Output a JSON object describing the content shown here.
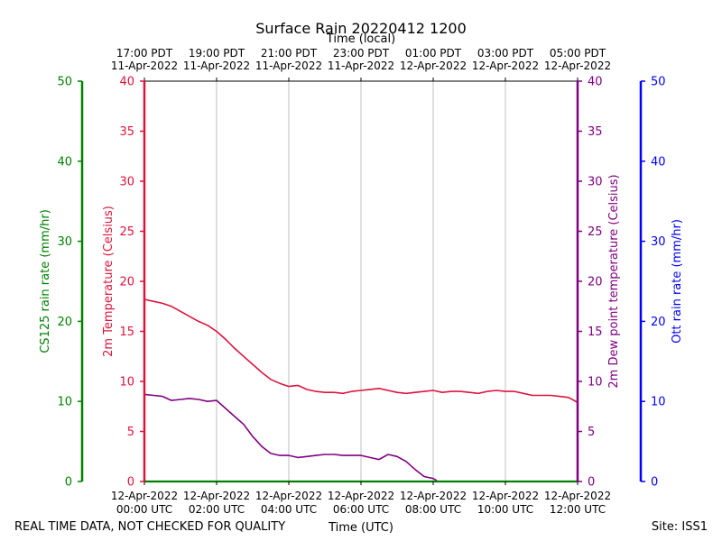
{
  "chart_data": {
    "type": "line",
    "title": "Surface Rain 20220412 1200",
    "top_axis_label": "Time (local)",
    "xlabel": "Time (UTC)",
    "footer_left": "REAL TIME DATA, NOT CHECKED FOR QUALITY",
    "footer_right": "Site: ISS1",
    "x_range_hours": [
      0,
      12
    ],
    "top_ticks": [
      {
        "hour": 0,
        "line1": "17:00 PDT",
        "line2": "11-Apr-2022"
      },
      {
        "hour": 2,
        "line1": "19:00 PDT",
        "line2": "11-Apr-2022"
      },
      {
        "hour": 4,
        "line1": "21:00 PDT",
        "line2": "11-Apr-2022"
      },
      {
        "hour": 6,
        "line1": "23:00 PDT",
        "line2": "11-Apr-2022"
      },
      {
        "hour": 8,
        "line1": "01:00 PDT",
        "line2": "12-Apr-2022"
      },
      {
        "hour": 10,
        "line1": "03:00 PDT",
        "line2": "12-Apr-2022"
      },
      {
        "hour": 12,
        "line1": "05:00 PDT",
        "line2": "12-Apr-2022"
      }
    ],
    "bottom_ticks": [
      {
        "hour": 0,
        "line1": "12-Apr-2022",
        "line2": "00:00 UTC"
      },
      {
        "hour": 2,
        "line1": "12-Apr-2022",
        "line2": "02:00 UTC"
      },
      {
        "hour": 4,
        "line1": "12-Apr-2022",
        "line2": "04:00 UTC"
      },
      {
        "hour": 6,
        "line1": "12-Apr-2022",
        "line2": "06:00 UTC"
      },
      {
        "hour": 8,
        "line1": "12-Apr-2022",
        "line2": "08:00 UTC"
      },
      {
        "hour": 10,
        "line1": "12-Apr-2022",
        "line2": "10:00 UTC"
      },
      {
        "hour": 12,
        "line1": "12-Apr-2022",
        "line2": "12:00 UTC"
      }
    ],
    "axes": {
      "cs125": {
        "label": "CS125 rain rate (mm/hr)",
        "ylim": [
          0,
          50
        ],
        "ticks": [
          0,
          10,
          20,
          30,
          40,
          50
        ],
        "color": "#008000"
      },
      "temp": {
        "label": "2m Temperature (Celsius)",
        "ylim": [
          0,
          40
        ],
        "ticks": [
          0,
          5,
          10,
          15,
          20,
          25,
          30,
          35,
          40
        ],
        "color": "#dc143c"
      },
      "dew": {
        "label": "2m Dew point temperature (Celsius)",
        "ylim": [
          0,
          40
        ],
        "ticks": [
          0,
          5,
          10,
          15,
          20,
          25,
          30,
          35,
          40
        ],
        "color": "#800080"
      },
      "ott": {
        "label": "Ott rain rate (mm/hr)",
        "ylim": [
          0,
          50
        ],
        "ticks": [
          0,
          10,
          20,
          30,
          40,
          50
        ],
        "color": "#0000ff"
      }
    },
    "series": [
      {
        "name": "2m Temperature",
        "axis": "temp",
        "color": "#dc143c",
        "x": [
          0,
          0.25,
          0.5,
          0.75,
          1.0,
          1.25,
          1.5,
          1.75,
          2.0,
          2.25,
          2.5,
          2.75,
          3.0,
          3.25,
          3.5,
          3.75,
          4.0,
          4.25,
          4.5,
          4.75,
          5.0,
          5.25,
          5.5,
          5.75,
          6.0,
          6.25,
          6.5,
          6.75,
          7.0,
          7.25,
          7.5,
          7.75,
          8.0,
          8.25,
          8.5,
          8.75,
          9.0,
          9.25,
          9.5,
          9.75,
          10.0,
          10.25,
          10.5,
          10.75,
          11.0,
          11.25,
          11.5,
          11.75,
          12.0
        ],
        "values": [
          18.2,
          18.0,
          17.8,
          17.5,
          17.0,
          16.5,
          16.0,
          15.6,
          15.0,
          14.2,
          13.3,
          12.5,
          11.7,
          10.9,
          10.2,
          9.8,
          9.5,
          9.6,
          9.2,
          9.0,
          8.9,
          8.9,
          8.8,
          9.0,
          9.1,
          9.2,
          9.3,
          9.1,
          8.9,
          8.8,
          8.9,
          9.0,
          9.1,
          8.9,
          9.0,
          9.0,
          8.9,
          8.8,
          9.0,
          9.1,
          9.0,
          9.0,
          8.8,
          8.6,
          8.6,
          8.6,
          8.5,
          8.4,
          7.9
        ]
      },
      {
        "name": "2m Dew point temperature",
        "axis": "dew",
        "color": "#800080",
        "x": [
          0,
          0.25,
          0.5,
          0.75,
          1.0,
          1.25,
          1.5,
          1.75,
          2.0,
          2.25,
          2.5,
          2.75,
          3.0,
          3.25,
          3.5,
          3.75,
          4.0,
          4.25,
          4.5,
          4.75,
          5.0,
          5.25,
          5.5,
          5.75,
          6.0,
          6.25,
          6.5,
          6.75,
          7.0,
          7.25,
          7.5,
          7.75,
          8.0,
          8.1
        ],
        "values": [
          8.7,
          8.6,
          8.5,
          8.1,
          8.2,
          8.3,
          8.2,
          8.0,
          8.1,
          7.3,
          6.5,
          5.7,
          4.5,
          3.5,
          2.8,
          2.6,
          2.6,
          2.4,
          2.5,
          2.6,
          2.7,
          2.7,
          2.6,
          2.6,
          2.6,
          2.4,
          2.2,
          2.7,
          2.5,
          2.0,
          1.2,
          0.5,
          0.3,
          0.1
        ]
      },
      {
        "name": "CS125 rain rate",
        "axis": "cs125",
        "color": "#008000",
        "x": [
          0,
          12
        ],
        "values": [
          0,
          0
        ]
      }
    ]
  }
}
